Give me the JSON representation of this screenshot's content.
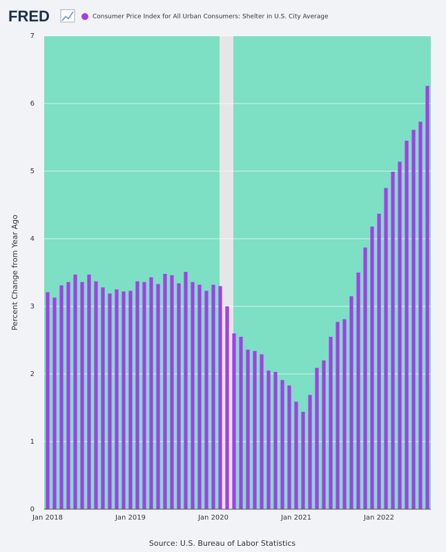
{
  "logo": "FRED",
  "chart_data": {
    "type": "bar",
    "title": "Consumer Price Index for All Urban Consumers: Shelter in U.S. City Average",
    "y_label": "Percent Change from Year Ago",
    "source": "Source: U.S. Bureau of Labor Statistics",
    "categories": [
      "Jan 2018",
      null,
      null,
      null,
      null,
      null,
      null,
      null,
      null,
      null,
      null,
      null,
      "Jan 2019",
      null,
      null,
      null,
      null,
      null,
      null,
      null,
      null,
      null,
      null,
      null,
      "Jan 2020",
      null,
      null,
      null,
      null,
      null,
      null,
      null,
      null,
      null,
      null,
      null,
      "Jan 2021",
      null,
      null,
      null,
      null,
      null,
      null,
      null,
      null,
      null,
      null,
      null,
      "Jan 2022",
      null,
      null,
      null,
      null,
      null,
      null,
      null
    ],
    "series": [
      {
        "name": "Consumer Price Index for All Urban Consumers: Shelter in U.S. City Average",
        "color": "#a53ee6",
        "values": [
          3.21,
          3.13,
          3.31,
          3.36,
          3.47,
          3.36,
          3.47,
          3.37,
          3.28,
          3.19,
          3.25,
          3.22,
          3.23,
          3.37,
          3.36,
          3.43,
          3.33,
          3.48,
          3.46,
          3.34,
          3.51,
          3.36,
          3.32,
          3.23,
          3.32,
          3.3,
          3.0,
          2.6,
          2.55,
          2.36,
          2.34,
          2.29,
          2.05,
          2.03,
          1.91,
          1.83,
          1.59,
          1.44,
          1.69,
          2.09,
          2.2,
          2.55,
          2.77,
          2.81,
          3.15,
          3.5,
          3.87,
          4.18,
          4.37,
          4.75,
          4.99,
          5.14,
          5.45,
          5.61,
          5.73,
          6.26
        ]
      }
    ],
    "ylim": [
      0,
      7
    ],
    "yticks": [
      0,
      1,
      2,
      3,
      4,
      5,
      6,
      7
    ],
    "grid": true,
    "plot_background": "#7ddfc4"
  }
}
